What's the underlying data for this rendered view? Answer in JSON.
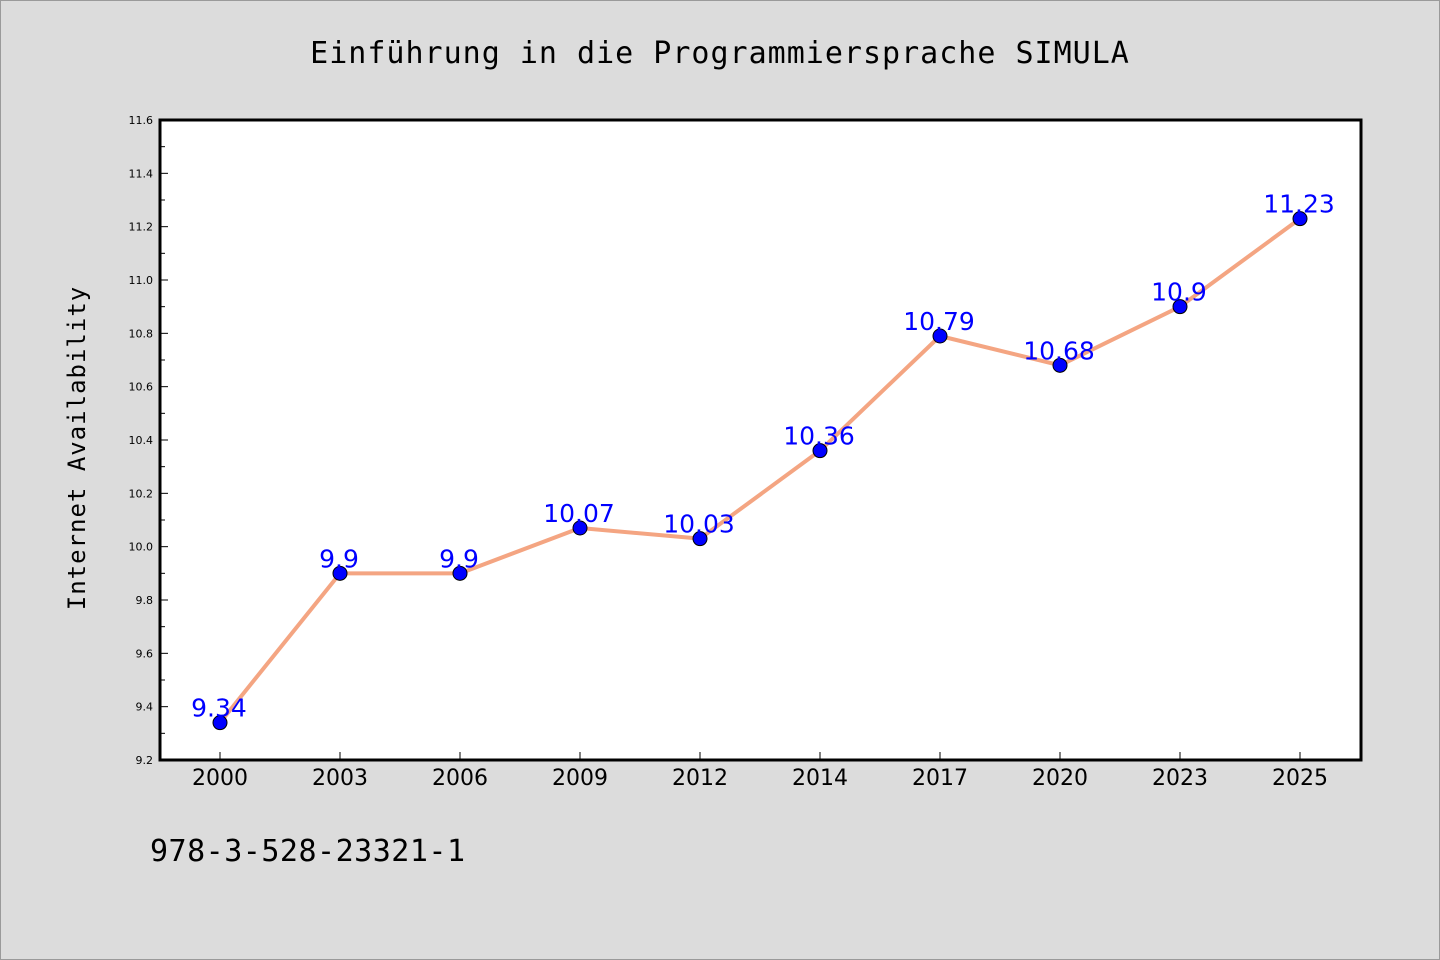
{
  "chart_data": {
    "type": "line",
    "title": "Einführung in die Programmiersprache SIMULA",
    "xlabel": "",
    "ylabel": "Internet Availability",
    "categories": [
      "2000",
      "2003",
      "2006",
      "2009",
      "2012",
      "2014",
      "2017",
      "2020",
      "2023",
      "2025"
    ],
    "series": [
      {
        "values": [
          9.34,
          9.9,
          9.9,
          10.07,
          10.03,
          10.36,
          10.79,
          10.68,
          10.9,
          11.23
        ],
        "data_labels": [
          "9.34",
          "9.9",
          "9.9",
          "10.07",
          "10.03",
          "10.36",
          "10.79",
          "10.68",
          "10.9",
          "11.23"
        ]
      }
    ],
    "ylim": [
      9.2,
      11.6
    ],
    "yticks": [
      "9.2",
      "9.4",
      "9.6",
      "9.8",
      "10.0",
      "10.2",
      "10.4",
      "10.6",
      "10.8",
      "11.0",
      "11.2",
      "11.4",
      "11.6"
    ],
    "grid": false,
    "legend": "none",
    "colors": {
      "line": "#f4a582",
      "marker": "#0000ff",
      "label": "#0000ff",
      "background": "#dcdcdc",
      "plot_background": "#ffffff"
    }
  },
  "footer": {
    "isbn": "978-3-528-23321-1"
  }
}
